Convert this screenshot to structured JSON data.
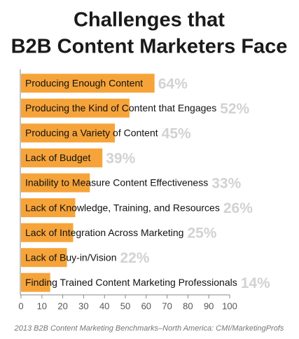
{
  "chart_data": {
    "type": "barh",
    "title": [
      "Challenges that",
      "B2B Content Marketers Face"
    ],
    "categories": [
      "Producing Enough Content",
      "Producing the Kind of Content that Engages",
      "Producing a Variety of Content",
      "Lack of Budget",
      "Inability to Measure Content Effectiveness",
      "Lack of Knowledge, Training, and Resources",
      "Lack of Integration Across Marketing",
      "Lack of Buy-in/Vision",
      "Finding Trained Content Marketing Professionals"
    ],
    "values": [
      64,
      52,
      45,
      39,
      33,
      26,
      25,
      22,
      14
    ],
    "value_labels": [
      "64%",
      "52%",
      "45%",
      "39%",
      "33%",
      "26%",
      "25%",
      "22%",
      "14%"
    ],
    "color": "#f6a43a",
    "xlim": [
      0,
      100
    ],
    "xticks": [
      0,
      10,
      20,
      30,
      40,
      50,
      60,
      70,
      80,
      90,
      100
    ],
    "grid": false,
    "source": "2013 B2B Content Marketing Benchmarks–North America: CMI/MarketingProfs"
  }
}
